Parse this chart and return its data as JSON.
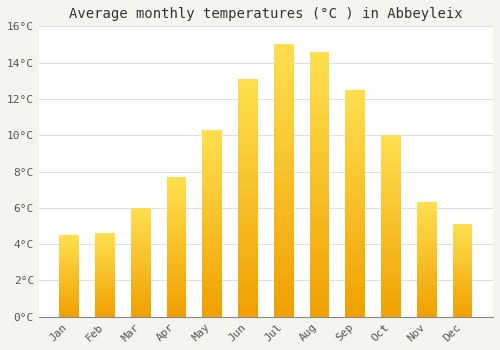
{
  "title": "Average monthly temperatures (°C ) in Abbeyleix",
  "months": [
    "Jan",
    "Feb",
    "Mar",
    "Apr",
    "May",
    "Jun",
    "Jul",
    "Aug",
    "Sep",
    "Oct",
    "Nov",
    "Dec"
  ],
  "values": [
    4.5,
    4.6,
    6.0,
    7.7,
    10.3,
    13.1,
    15.0,
    14.6,
    12.5,
    10.0,
    6.3,
    5.1
  ],
  "bar_color_bottom": "#F0A000",
  "bar_color_top": "#FFD84D",
  "background_color": "#f5f5f0",
  "plot_bg_color": "#ffffff",
  "grid_color": "#e0e0e0",
  "ylim": [
    0,
    16
  ],
  "yticks": [
    0,
    2,
    4,
    6,
    8,
    10,
    12,
    14,
    16
  ],
  "ytick_labels": [
    "0°C",
    "2°C",
    "4°C",
    "6°C",
    "8°C",
    "10°C",
    "12°C",
    "14°C",
    "16°C"
  ],
  "title_fontsize": 10,
  "tick_fontsize": 8,
  "font_family": "monospace",
  "bar_width": 0.55
}
